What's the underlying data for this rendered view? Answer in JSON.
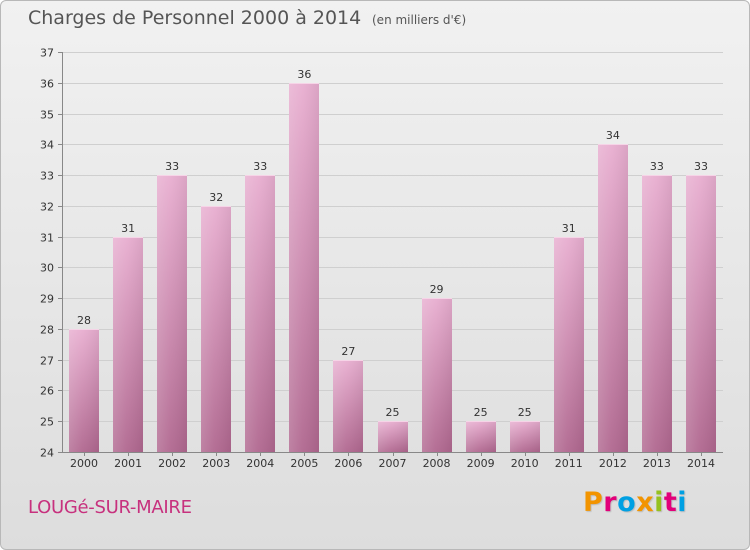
{
  "header": {
    "title": "Charges de Personnel 2000 à 2014",
    "subtitle": "(en milliers d'€)"
  },
  "footer": {
    "commune": "LOUGé-SUR-MAIRE",
    "brand": "Proxiti",
    "brand_colors": [
      "#f29400",
      "#e2007a",
      "#00a0e3",
      "#f29400",
      "#95c11f",
      "#e2007a",
      "#00a0e3"
    ]
  },
  "colors": {
    "bar_top": "#e8aed0",
    "bar_bottom": "#b0678f",
    "grid": "#cfcfcf",
    "axis": "#888888"
  },
  "chart_data": {
    "type": "bar",
    "title": "Charges de Personnel 2000 à 2014",
    "subtitle": "(en milliers d'€)",
    "categories": [
      "2000",
      "2001",
      "2002",
      "2003",
      "2004",
      "2005",
      "2006",
      "2007",
      "2008",
      "2009",
      "2010",
      "2011",
      "2012",
      "2013",
      "2014"
    ],
    "values": [
      28,
      31,
      33,
      32,
      33,
      36,
      27,
      25,
      29,
      25,
      25,
      31,
      34,
      33,
      33
    ],
    "ylim": [
      24,
      37
    ],
    "yticks": [
      24,
      25,
      26,
      27,
      28,
      29,
      30,
      31,
      32,
      33,
      34,
      35,
      36,
      37
    ],
    "grid": true,
    "data_labels": true
  }
}
